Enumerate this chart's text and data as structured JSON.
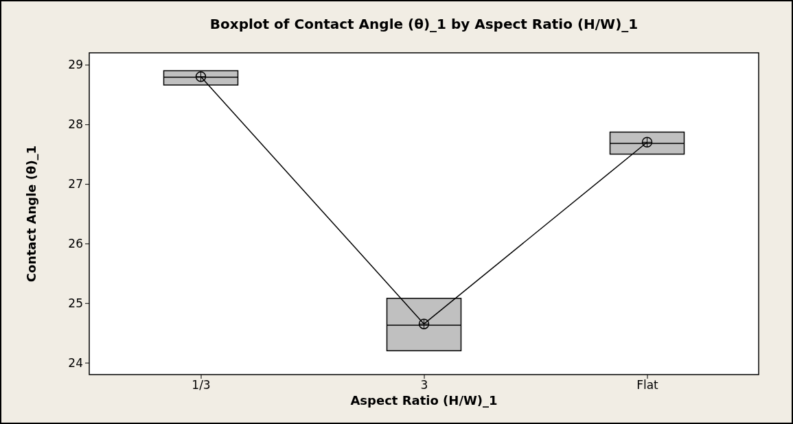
{
  "chart_data": {
    "type": "box",
    "title": "Boxplot of Contact Angle (θ)_1 by Aspect Ratio (H/W)_1",
    "xlabel": "Aspect Ratio (H/W)_1",
    "ylabel": "Contact Angle (θ)_1",
    "categories": [
      "1/3",
      "3",
      "Flat"
    ],
    "ylim": [
      23.8,
      29.2
    ],
    "yticks": [
      24,
      25,
      26,
      27,
      28,
      29
    ],
    "grid": false,
    "series": [
      {
        "type": "box",
        "color": "#c0c0c0",
        "boxes": [
          {
            "low": 28.66,
            "q1": 28.66,
            "median": 28.79,
            "q3": 28.9,
            "high": 28.9
          },
          {
            "low": 24.2,
            "q1": 24.2,
            "median": 24.63,
            "q3": 25.08,
            "high": 25.08
          },
          {
            "low": 27.5,
            "q1": 27.5,
            "median": 27.68,
            "q3": 27.87,
            "high": 27.87
          }
        ]
      },
      {
        "type": "line",
        "color": "#000000",
        "marker": "circle",
        "values": [
          28.8,
          24.65,
          27.7
        ]
      }
    ]
  }
}
